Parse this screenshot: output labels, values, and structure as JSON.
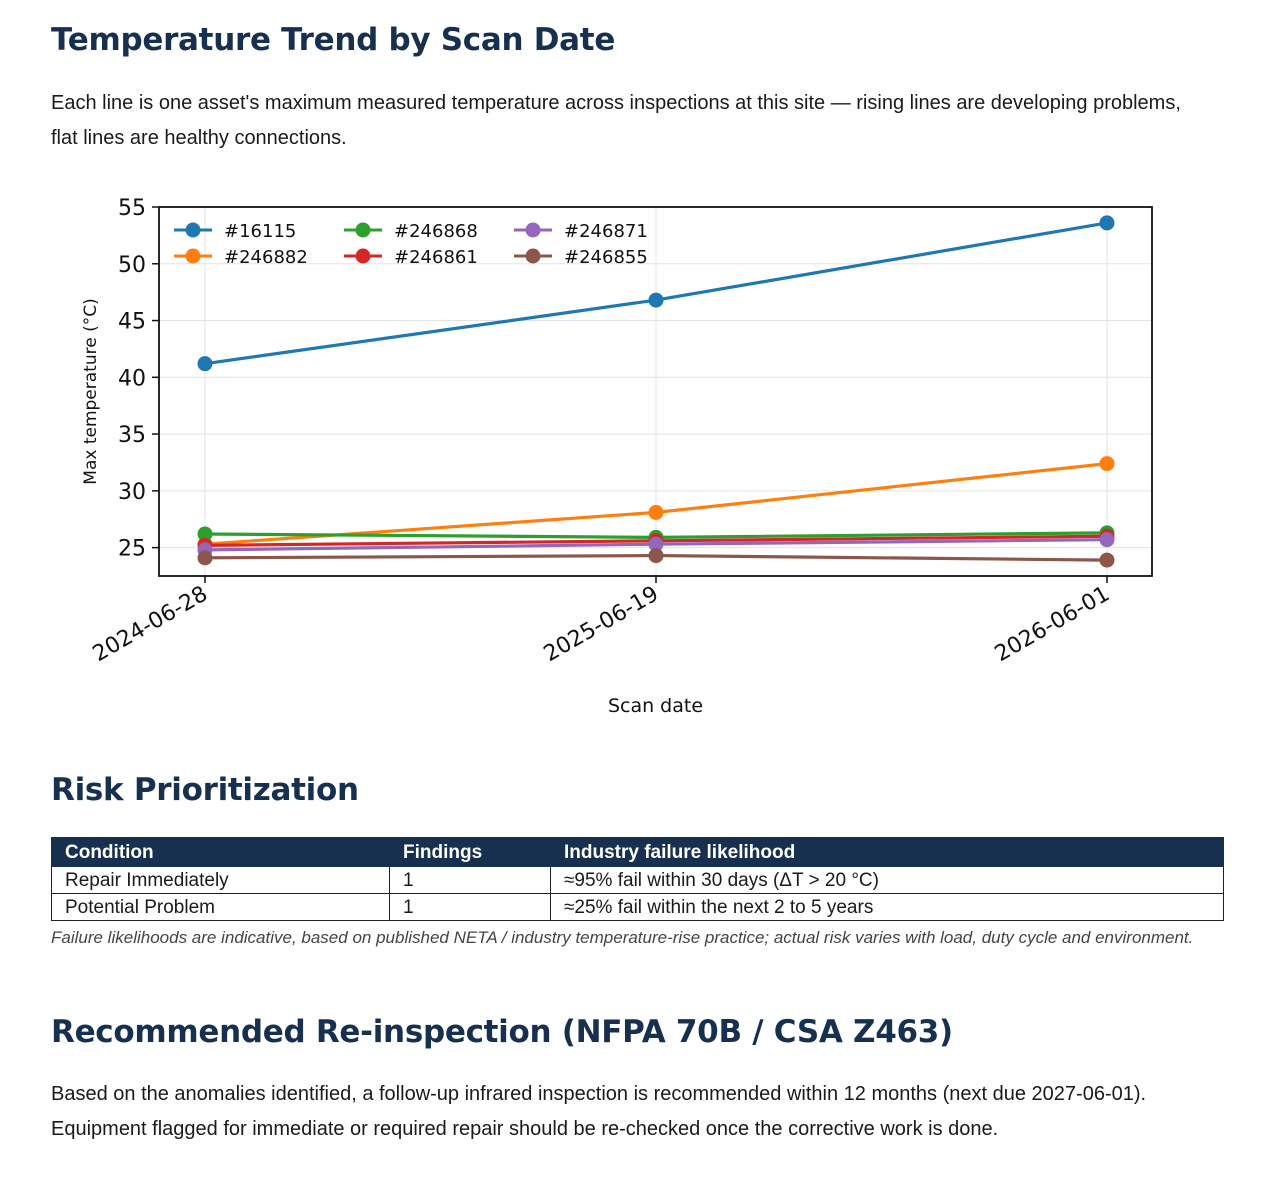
{
  "trend": {
    "heading": "Temperature Trend by Scan Date",
    "intro": "Each line is one asset's maximum measured temperature across inspections at this site — rising lines are developing problems, flat lines are healthy connections."
  },
  "chart_data": {
    "type": "line",
    "x": [
      "2024-06-28",
      "2025-06-19",
      "2026-06-01"
    ],
    "xlabel": "Scan date",
    "ylabel": "Max temperature (°C)",
    "ylim": [
      22.5,
      55
    ],
    "yticks": [
      25,
      30,
      35,
      40,
      45,
      50,
      55
    ],
    "grid": true,
    "legend": "top-left",
    "series": [
      {
        "name": "#16115",
        "color": "#1f77b4",
        "values": [
          41.2,
          46.8,
          53.6
        ]
      },
      {
        "name": "#246882",
        "color": "#ff7f0e",
        "values": [
          25.3,
          28.1,
          32.4
        ]
      },
      {
        "name": "#246868",
        "color": "#2ca02c",
        "values": [
          26.2,
          25.9,
          26.3
        ]
      },
      {
        "name": "#246861",
        "color": "#d62728",
        "values": [
          25.2,
          25.6,
          26.0
        ]
      },
      {
        "name": "#246871",
        "color": "#9467bd",
        "values": [
          24.8,
          25.3,
          25.7
        ]
      },
      {
        "name": "#246855",
        "color": "#8c564b",
        "values": [
          24.1,
          24.3,
          23.9
        ]
      }
    ]
  },
  "risk": {
    "heading": "Risk Prioritization",
    "columns": [
      "Condition",
      "Findings",
      "Industry failure likelihood"
    ],
    "rows": [
      [
        "Repair Immediately",
        "1",
        "≈95% fail within 30 days (ΔT > 20 °C)"
      ],
      [
        "Potential Problem",
        "1",
        "≈25% fail within the next 2 to 5 years"
      ]
    ],
    "note": "Failure likelihoods are indicative, based on published NETA / industry temperature-rise practice; actual risk varies with load, duty cycle and environment."
  },
  "reinspection": {
    "heading": "Recommended Re-inspection (NFPA 70B / CSA Z463)",
    "body": "Based on the anomalies identified, a follow-up infrared inspection is recommended within 12 months (next due 2027-06-01). Equipment flagged for immediate or required repair should be re-checked once the corrective work is done."
  }
}
